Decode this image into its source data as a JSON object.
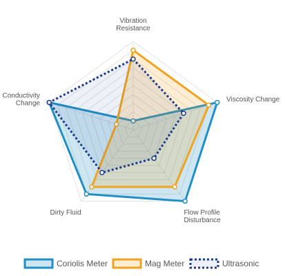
{
  "chart_data": {
    "type": "radar",
    "axes": [
      {
        "lines": [
          "Vibration",
          "Resistance"
        ]
      },
      {
        "lines": [
          "Viscosity Change"
        ]
      },
      {
        "lines": [
          "Flow Profile",
          "Disturbance"
        ]
      },
      {
        "lines": [
          "Dirty Fluid"
        ]
      },
      {
        "lines": [
          "Conductivity",
          "Change"
        ]
      }
    ],
    "range": [
      0,
      10
    ],
    "grid_levels": 10,
    "legend_position": "bottom",
    "series": [
      {
        "name": "Coriolis Meter",
        "values": [
          1,
          10,
          10,
          9,
          10
        ],
        "color": "#1f8fc5",
        "fill": "rgba(31,143,197,0.22)",
        "dash": "solid"
      },
      {
        "name": "Mag Meter",
        "values": [
          9,
          9,
          8,
          8,
          2
        ],
        "color": "#f0a321",
        "fill": "rgba(240,163,33,0.20)",
        "dash": "solid"
      },
      {
        "name": "Ultrasonic",
        "values": [
          8,
          6,
          4,
          6,
          10
        ],
        "color": "#1e3a8a",
        "fill": "rgba(30,58,138,0.08)",
        "dash": "dotted"
      }
    ]
  }
}
